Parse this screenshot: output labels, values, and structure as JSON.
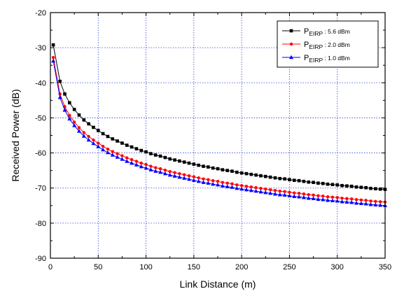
{
  "chart_data": {
    "type": "line",
    "title": "",
    "xlabel": "Link Distance (m)",
    "ylabel": "Received Power (dB)",
    "xlim": [
      0,
      350
    ],
    "ylim": [
      -90,
      -20
    ],
    "xticks": [
      0,
      50,
      100,
      150,
      200,
      250,
      300,
      350
    ],
    "yticks": [
      -90,
      -80,
      -70,
      -60,
      -50,
      -40,
      -30,
      -20
    ],
    "xtick_labels": [
      "0",
      "50",
      "100",
      "150",
      "200",
      "250",
      "300",
      "350"
    ],
    "ytick_labels": [
      "-90",
      "-80",
      "-70",
      "-60",
      "-50",
      "-40",
      "-30",
      "-20"
    ],
    "grid": true,
    "legend_position": "top-right",
    "x": [
      3,
      10,
      15,
      20,
      25,
      30,
      35,
      40,
      45,
      50,
      55,
      60,
      65,
      70,
      75,
      80,
      85,
      90,
      95,
      100,
      105,
      110,
      115,
      120,
      125,
      130,
      135,
      140,
      145,
      150,
      155,
      160,
      165,
      170,
      175,
      180,
      185,
      190,
      195,
      200,
      205,
      210,
      215,
      220,
      225,
      230,
      235,
      240,
      245,
      250,
      255,
      260,
      265,
      270,
      275,
      280,
      285,
      290,
      295,
      300,
      305,
      310,
      315,
      320,
      325,
      330,
      335,
      340,
      345,
      350
    ],
    "series": [
      {
        "legend_main": "P",
        "legend_sub": "EIRP",
        "legend_suffix": " : 5.6 dBm",
        "color": "#000000",
        "marker": "square",
        "values": [
          -29.2,
          -39.6,
          -43.2,
          -45.7,
          -47.6,
          -49.2,
          -50.6,
          -51.7,
          -52.7,
          -53.6,
          -54.5,
          -55.3,
          -56.0,
          -56.6,
          -57.2,
          -57.8,
          -58.3,
          -58.8,
          -59.3,
          -59.7,
          -60.2,
          -60.6,
          -60.9,
          -61.3,
          -61.7,
          -62.0,
          -62.3,
          -62.6,
          -62.9,
          -63.2,
          -63.5,
          -63.8,
          -64.0,
          -64.3,
          -64.5,
          -64.8,
          -65.0,
          -65.2,
          -65.5,
          -65.7,
          -65.9,
          -66.1,
          -66.3,
          -66.5,
          -66.7,
          -66.9,
          -67.1,
          -67.3,
          -67.4,
          -67.6,
          -67.8,
          -67.9,
          -68.1,
          -68.3,
          -68.4,
          -68.6,
          -68.7,
          -68.9,
          -69.0,
          -69.1,
          -69.3,
          -69.4,
          -69.5,
          -69.7,
          -69.8,
          -69.9,
          -70.1,
          -70.2,
          -70.3,
          -70.4
        ]
      },
      {
        "legend_main": "P",
        "legend_sub": "EIRP",
        "legend_suffix": " : 2.0 dBm",
        "color": "#ff0000",
        "marker": "dot",
        "values": [
          -32.8,
          -43.2,
          -46.8,
          -49.3,
          -51.2,
          -52.8,
          -54.2,
          -55.3,
          -56.3,
          -57.2,
          -58.1,
          -58.9,
          -59.6,
          -60.2,
          -60.8,
          -61.4,
          -61.9,
          -62.4,
          -62.9,
          -63.3,
          -63.8,
          -64.2,
          -64.5,
          -64.9,
          -65.3,
          -65.6,
          -65.9,
          -66.2,
          -66.5,
          -66.8,
          -67.1,
          -67.4,
          -67.6,
          -67.9,
          -68.1,
          -68.4,
          -68.6,
          -68.8,
          -69.1,
          -69.3,
          -69.5,
          -69.7,
          -69.9,
          -70.1,
          -70.3,
          -70.5,
          -70.7,
          -70.9,
          -71.0,
          -71.2,
          -71.4,
          -71.5,
          -71.7,
          -71.9,
          -72.0,
          -72.2,
          -72.3,
          -72.5,
          -72.6,
          -72.7,
          -72.9,
          -73.0,
          -73.1,
          -73.3,
          -73.4,
          -73.5,
          -73.7,
          -73.8,
          -73.9,
          -74.0
        ]
      },
      {
        "legend_main": "P",
        "legend_sub": "EIRP",
        "legend_suffix": " : 1.0 dBm",
        "color": "#0000ff",
        "marker": "triangle",
        "values": [
          -33.8,
          -44.2,
          -47.8,
          -50.3,
          -52.2,
          -53.8,
          -55.2,
          -56.3,
          -57.3,
          -58.2,
          -59.1,
          -59.9,
          -60.6,
          -61.2,
          -61.8,
          -62.4,
          -62.9,
          -63.4,
          -63.9,
          -64.3,
          -64.8,
          -65.2,
          -65.5,
          -65.9,
          -66.3,
          -66.6,
          -66.9,
          -67.2,
          -67.5,
          -67.8,
          -68.1,
          -68.4,
          -68.6,
          -68.9,
          -69.1,
          -69.4,
          -69.6,
          -69.8,
          -70.1,
          -70.3,
          -70.5,
          -70.7,
          -70.9,
          -71.1,
          -71.3,
          -71.5,
          -71.7,
          -71.9,
          -72.0,
          -72.2,
          -72.4,
          -72.5,
          -72.7,
          -72.9,
          -73.0,
          -73.2,
          -73.3,
          -73.5,
          -73.6,
          -73.7,
          -73.9,
          -74.0,
          -74.1,
          -74.3,
          -74.4,
          -74.5,
          -74.7,
          -74.8,
          -74.9,
          -75.0
        ]
      }
    ]
  }
}
